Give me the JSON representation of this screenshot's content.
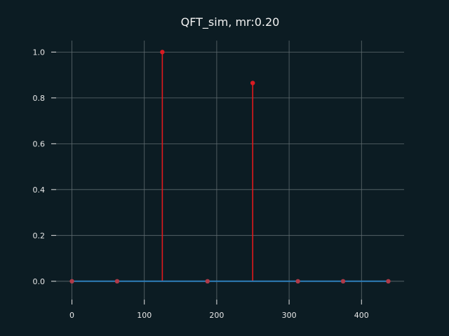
{
  "colors": {
    "background": "#0c1c23",
    "grid": "#5f6b70",
    "axis_text": "#e8e8e8",
    "title": "#f2f2f2",
    "stem": "#e0191c",
    "marker": "#d81b22",
    "marker_faded": "#b03a48",
    "baseline": "#2e7fba"
  },
  "chart_data": {
    "type": "stem",
    "title": "QFT_sim, mr:0.20",
    "xlabel": "",
    "ylabel": "",
    "xlim": [
      -21.85,
      458.85
    ],
    "ylim": [
      -0.08,
      1.05
    ],
    "grid": true,
    "x": [
      0,
      62.43,
      124.86,
      187.29,
      249.71,
      312.14,
      374.57,
      437.0
    ],
    "values": [
      0.0,
      0.0,
      1.0,
      0.0,
      0.865,
      0.0,
      0.0,
      0.0
    ],
    "xticks": [
      0,
      100,
      200,
      300,
      400
    ],
    "xtick_labels": [
      "0",
      "100",
      "200",
      "300",
      "400"
    ],
    "yticks": [
      0.0,
      0.2,
      0.4,
      0.6,
      0.8,
      1.0
    ],
    "ytick_labels": [
      "0.0",
      "0.2",
      "0.4",
      "0.6",
      "0.8",
      "1.0"
    ],
    "baseline": 0.0
  }
}
